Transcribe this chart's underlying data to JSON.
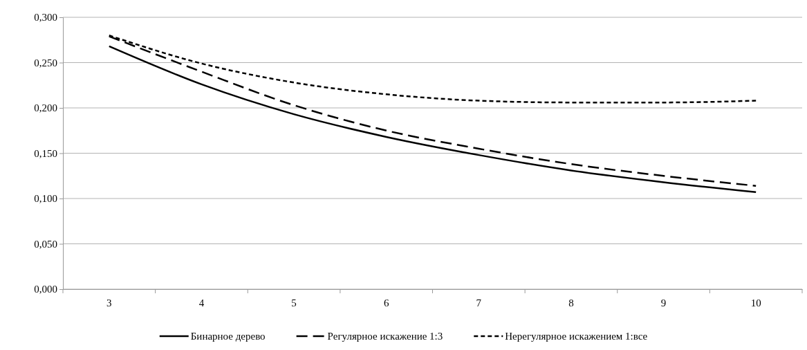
{
  "chart_data": {
    "type": "line",
    "categories": [
      "3",
      "4",
      "5",
      "6",
      "7",
      "8",
      "9",
      "10"
    ],
    "series": [
      {
        "name": "Бинарное дерево",
        "color": "#000000",
        "line_style": "solid",
        "values": [
          0.268,
          0.226,
          0.193,
          0.168,
          0.148,
          0.131,
          0.118,
          0.107
        ]
      },
      {
        "name": "Регулярное искажение 1:3",
        "color": "#000000",
        "line_style": "dashed",
        "values": [
          0.279,
          0.24,
          0.203,
          0.175,
          0.155,
          0.138,
          0.125,
          0.114
        ]
      },
      {
        "name": "Нерегулярное искажением 1:все",
        "color": "#000000",
        "line_style": "dotted",
        "values": [
          0.28,
          0.249,
          0.228,
          0.215,
          0.208,
          0.206,
          0.206,
          0.208
        ]
      }
    ],
    "ylim": [
      0,
      0.3
    ],
    "yticks": [
      {
        "value": 0,
        "label": "0,000"
      },
      {
        "value": 0.05,
        "label": "0,050"
      },
      {
        "value": 0.1,
        "label": "0,100"
      },
      {
        "value": 0.15,
        "label": "0,150"
      },
      {
        "value": 0.2,
        "label": "0,200"
      },
      {
        "value": 0.25,
        "label": "0,250"
      },
      {
        "value": 0.3,
        "label": "0,300"
      }
    ],
    "grid": "y",
    "legend": "bottom",
    "marker": "none"
  }
}
